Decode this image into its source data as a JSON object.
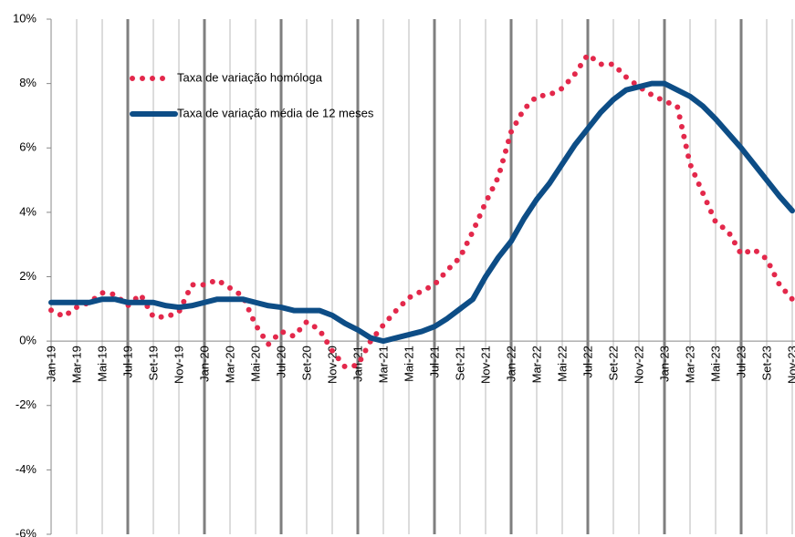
{
  "chart_data": {
    "type": "line",
    "categories": [
      "Jan-19",
      null,
      "Mar-19",
      null,
      "Mai-19",
      null,
      "Jul-19",
      null,
      "Set-19",
      null,
      "Nov-19",
      null,
      "Jan-20",
      null,
      "Mar-20",
      null,
      "Mai-20",
      null,
      "Jul-20",
      null,
      "Set-20",
      null,
      "Nov-20",
      null,
      "Jan-21",
      null,
      "Mar-21",
      null,
      "Mai-21",
      null,
      "Jul-21",
      null,
      "Set-21",
      null,
      "Nov-21",
      null,
      "Jan-22",
      null,
      "Mar-22",
      null,
      "Mai-22",
      null,
      "Jul-22",
      null,
      "Set-22",
      null,
      "Nov-22",
      null,
      "Jan-23",
      null,
      "Mar-23",
      null,
      "Mai-23",
      null,
      "Jul-23",
      null,
      "Set-23",
      null,
      "Nov-23"
    ],
    "series": [
      {
        "name": "Taxa de variação homóloga",
        "color": "#e3284b",
        "style": "dotted",
        "values": [
          0.96,
          0.76,
          1.05,
          1.2,
          1.5,
          1.45,
          1.1,
          1.45,
          0.75,
          0.75,
          0.9,
          1.75,
          1.75,
          1.9,
          1.65,
          1.4,
          0.5,
          -0.1,
          0.3,
          0.15,
          0.6,
          0.35,
          -0.3,
          -0.8,
          -0.75,
          0.0,
          0.5,
          0.95,
          1.35,
          1.55,
          1.75,
          2.2,
          2.6,
          3.4,
          4.3,
          5.1,
          6.5,
          7.2,
          7.6,
          7.65,
          7.85,
          8.3,
          8.9,
          8.6,
          8.6,
          8.2,
          7.9,
          7.65,
          7.45,
          7.3,
          5.5,
          4.6,
          3.7,
          3.4,
          2.7,
          2.85,
          2.55,
          1.75,
          1.3
        ]
      },
      {
        "name": "Taxa de variação média de 12 meses",
        "color": "#0d4d86",
        "style": "solid",
        "values": [
          1.2,
          1.2,
          1.2,
          1.2,
          1.3,
          1.3,
          1.2,
          1.2,
          1.2,
          1.1,
          1.05,
          1.1,
          1.2,
          1.3,
          1.3,
          1.3,
          1.2,
          1.1,
          1.05,
          0.95,
          0.95,
          0.95,
          0.8,
          0.55,
          0.35,
          0.1,
          0.0,
          0.1,
          0.2,
          0.3,
          0.45,
          0.7,
          1.0,
          1.3,
          2.0,
          2.6,
          3.1,
          3.8,
          4.4,
          4.9,
          5.5,
          6.1,
          6.6,
          7.1,
          7.5,
          7.8,
          7.9,
          8.0,
          8.0,
          7.8,
          7.6,
          7.3,
          6.9,
          6.45,
          6.0,
          5.5,
          5.0,
          4.5,
          4.05
        ]
      }
    ],
    "ylim": [
      -6,
      10
    ],
    "yticks": [
      {
        "value": -6,
        "label": "-6%"
      },
      {
        "value": -4,
        "label": "-4%"
      },
      {
        "value": -2,
        "label": "-2%"
      },
      {
        "value": 0,
        "label": "0%"
      },
      {
        "value": 2,
        "label": "2%"
      },
      {
        "value": 4,
        "label": "4%"
      },
      {
        "value": 6,
        "label": "6%"
      },
      {
        "value": 8,
        "label": "8%"
      },
      {
        "value": 10,
        "label": "10%"
      }
    ],
    "grid": true
  }
}
